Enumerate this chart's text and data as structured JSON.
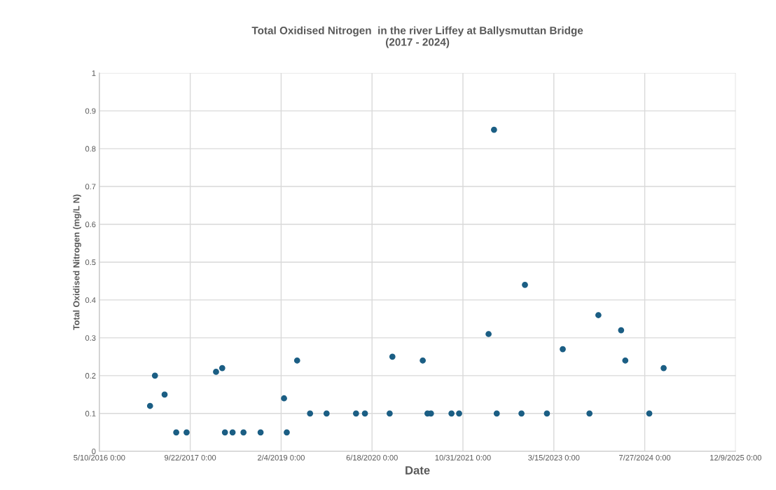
{
  "chart_data": {
    "type": "scatter",
    "title": "Total Oxidised Nitrogen  in the river Liffey at Ballysmuttan Bridge\n(2017 - 2024)",
    "xlabel": "Date",
    "ylabel": "Total Oxidised Nitrogen (mg/L N)",
    "x": [
      "2017-02-13",
      "2017-03-12",
      "2017-05-04",
      "2017-07-07",
      "2017-09-02",
      "2018-02-11",
      "2018-03-17",
      "2018-04-01",
      "2018-05-13",
      "2018-07-12",
      "2018-10-14",
      "2019-02-20",
      "2019-03-07",
      "2019-05-03",
      "2019-07-13",
      "2019-10-12",
      "2020-03-22",
      "2020-05-10",
      "2020-09-23",
      "2020-10-08",
      "2021-03-24",
      "2021-04-19",
      "2021-05-08",
      "2021-08-29",
      "2021-10-10",
      "2022-03-21",
      "2022-04-20",
      "2022-05-05",
      "2022-09-18",
      "2022-10-07",
      "2023-02-05",
      "2023-05-03",
      "2023-09-27",
      "2023-11-15",
      "2024-03-19",
      "2024-04-11",
      "2024-08-21",
      "2024-11-08"
    ],
    "series": [
      {
        "color": "#1b5e84",
        "values": [
          0.12,
          0.2,
          0.15,
          0.05,
          0.05,
          0.21,
          0.22,
          0.05,
          0.05,
          0.05,
          0.05,
          0.14,
          0.05,
          0.24,
          0.1,
          0.1,
          0.1,
          0.1,
          0.1,
          0.25,
          0.24,
          0.1,
          0.1,
          0.1,
          0.1,
          0.31,
          0.85,
          0.1,
          0.1,
          0.44,
          0.1,
          0.27,
          0.1,
          0.36,
          0.32,
          0.24,
          0.1,
          0.22
        ]
      }
    ],
    "xlim": [
      "2016-05-10",
      "2025-12-09"
    ],
    "xticks": [
      {
        "value": "2016-05-10",
        "label": "5/10/2016 0:00"
      },
      {
        "value": "2017-09-22",
        "label": "9/22/2017 0:00"
      },
      {
        "value": "2019-02-04",
        "label": "2/4/2019 0:00"
      },
      {
        "value": "2020-06-18",
        "label": "6/18/2020 0:00"
      },
      {
        "value": "2021-10-31",
        "label": "10/31/2021 0:00"
      },
      {
        "value": "2023-03-15",
        "label": "3/15/2023 0:00"
      },
      {
        "value": "2024-07-27",
        "label": "7/27/2024 0:00"
      },
      {
        "value": "2025-12-09",
        "label": "12/9/2025 0:00"
      }
    ],
    "ylim": [
      0,
      1
    ],
    "yticks": [
      0,
      0.1,
      0.2,
      0.3,
      0.4,
      0.5,
      0.6,
      0.7,
      0.8,
      0.9,
      1
    ],
    "grid": true,
    "marker": "circle",
    "legend": false
  }
}
